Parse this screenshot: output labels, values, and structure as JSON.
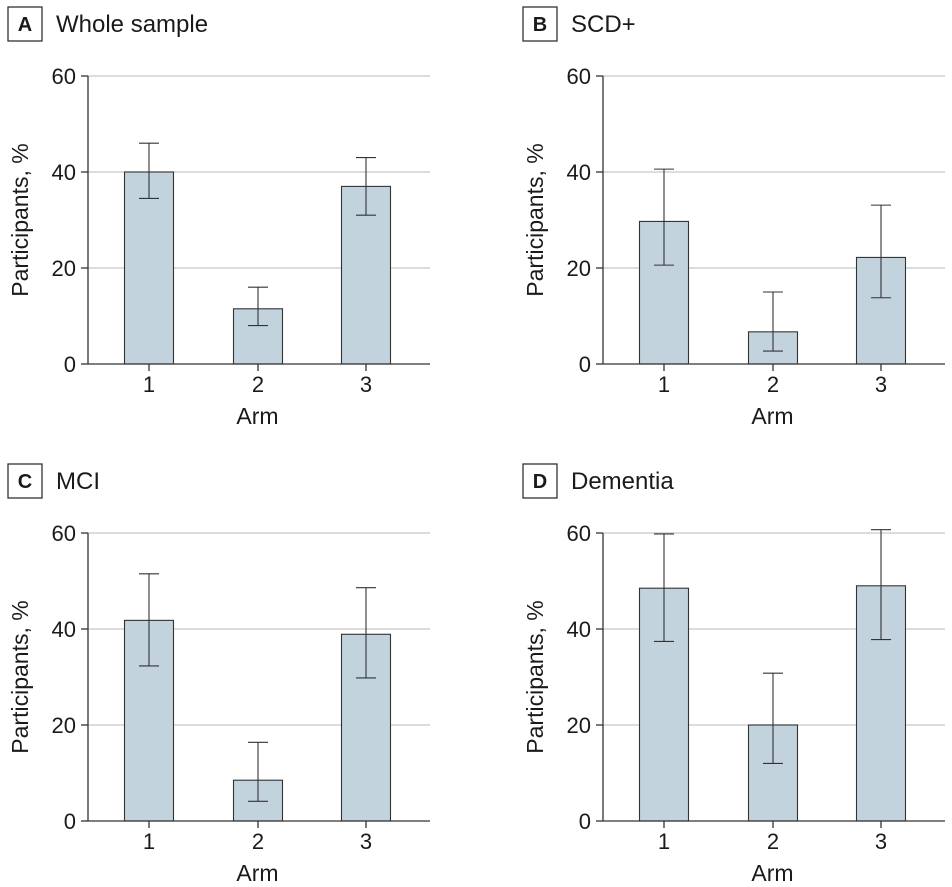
{
  "chart_data": [
    {
      "type": "bar",
      "panel_letter": "A",
      "title": "Whole sample",
      "xlabel": "Arm",
      "ylabel": "Participants, %",
      "categories": [
        "1",
        "2",
        "3"
      ],
      "values": [
        40,
        11.5,
        37
      ],
      "error_low": [
        34.5,
        8,
        31
      ],
      "error_high": [
        46,
        16,
        43
      ],
      "ylim": [
        0,
        60
      ],
      "yticks": [
        0,
        20,
        40,
        60
      ],
      "grid": true
    },
    {
      "type": "bar",
      "panel_letter": "B",
      "title": "SCD+",
      "xlabel": "Arm",
      "ylabel": "Participants, %",
      "categories": [
        "1",
        "2",
        "3"
      ],
      "values": [
        29.7,
        6.7,
        22.2
      ],
      "error_low": [
        20.6,
        2.7,
        13.8
      ],
      "error_high": [
        40.6,
        15,
        33.1
      ],
      "ylim": [
        0,
        60
      ],
      "yticks": [
        0,
        20,
        40,
        60
      ],
      "grid": true
    },
    {
      "type": "bar",
      "panel_letter": "C",
      "title": "MCI",
      "xlabel": "Arm",
      "ylabel": "Participants, %",
      "categories": [
        "1",
        "2",
        "3"
      ],
      "values": [
        41.8,
        8.5,
        38.9
      ],
      "error_low": [
        32.3,
        4.1,
        29.8
      ],
      "error_high": [
        51.5,
        16.4,
        48.6
      ],
      "ylim": [
        0,
        60
      ],
      "yticks": [
        0,
        20,
        40,
        60
      ],
      "grid": true
    },
    {
      "type": "bar",
      "panel_letter": "D",
      "title": "Dementia",
      "xlabel": "Arm",
      "ylabel": "Participants, %",
      "categories": [
        "1",
        "2",
        "3"
      ],
      "values": [
        48.5,
        20,
        49
      ],
      "error_low": [
        37.4,
        12,
        37.8
      ],
      "error_high": [
        59.8,
        30.8,
        60.7
      ],
      "ylim": [
        0,
        60
      ],
      "yticks": [
        0,
        20,
        40,
        60
      ],
      "grid": true
    }
  ],
  "colors": {
    "bar_fill": "#c2d3dd",
    "bar_stroke": "#333333",
    "grid": "#c8c8c8",
    "axis": "#333333",
    "text": "#1a1a1a"
  }
}
